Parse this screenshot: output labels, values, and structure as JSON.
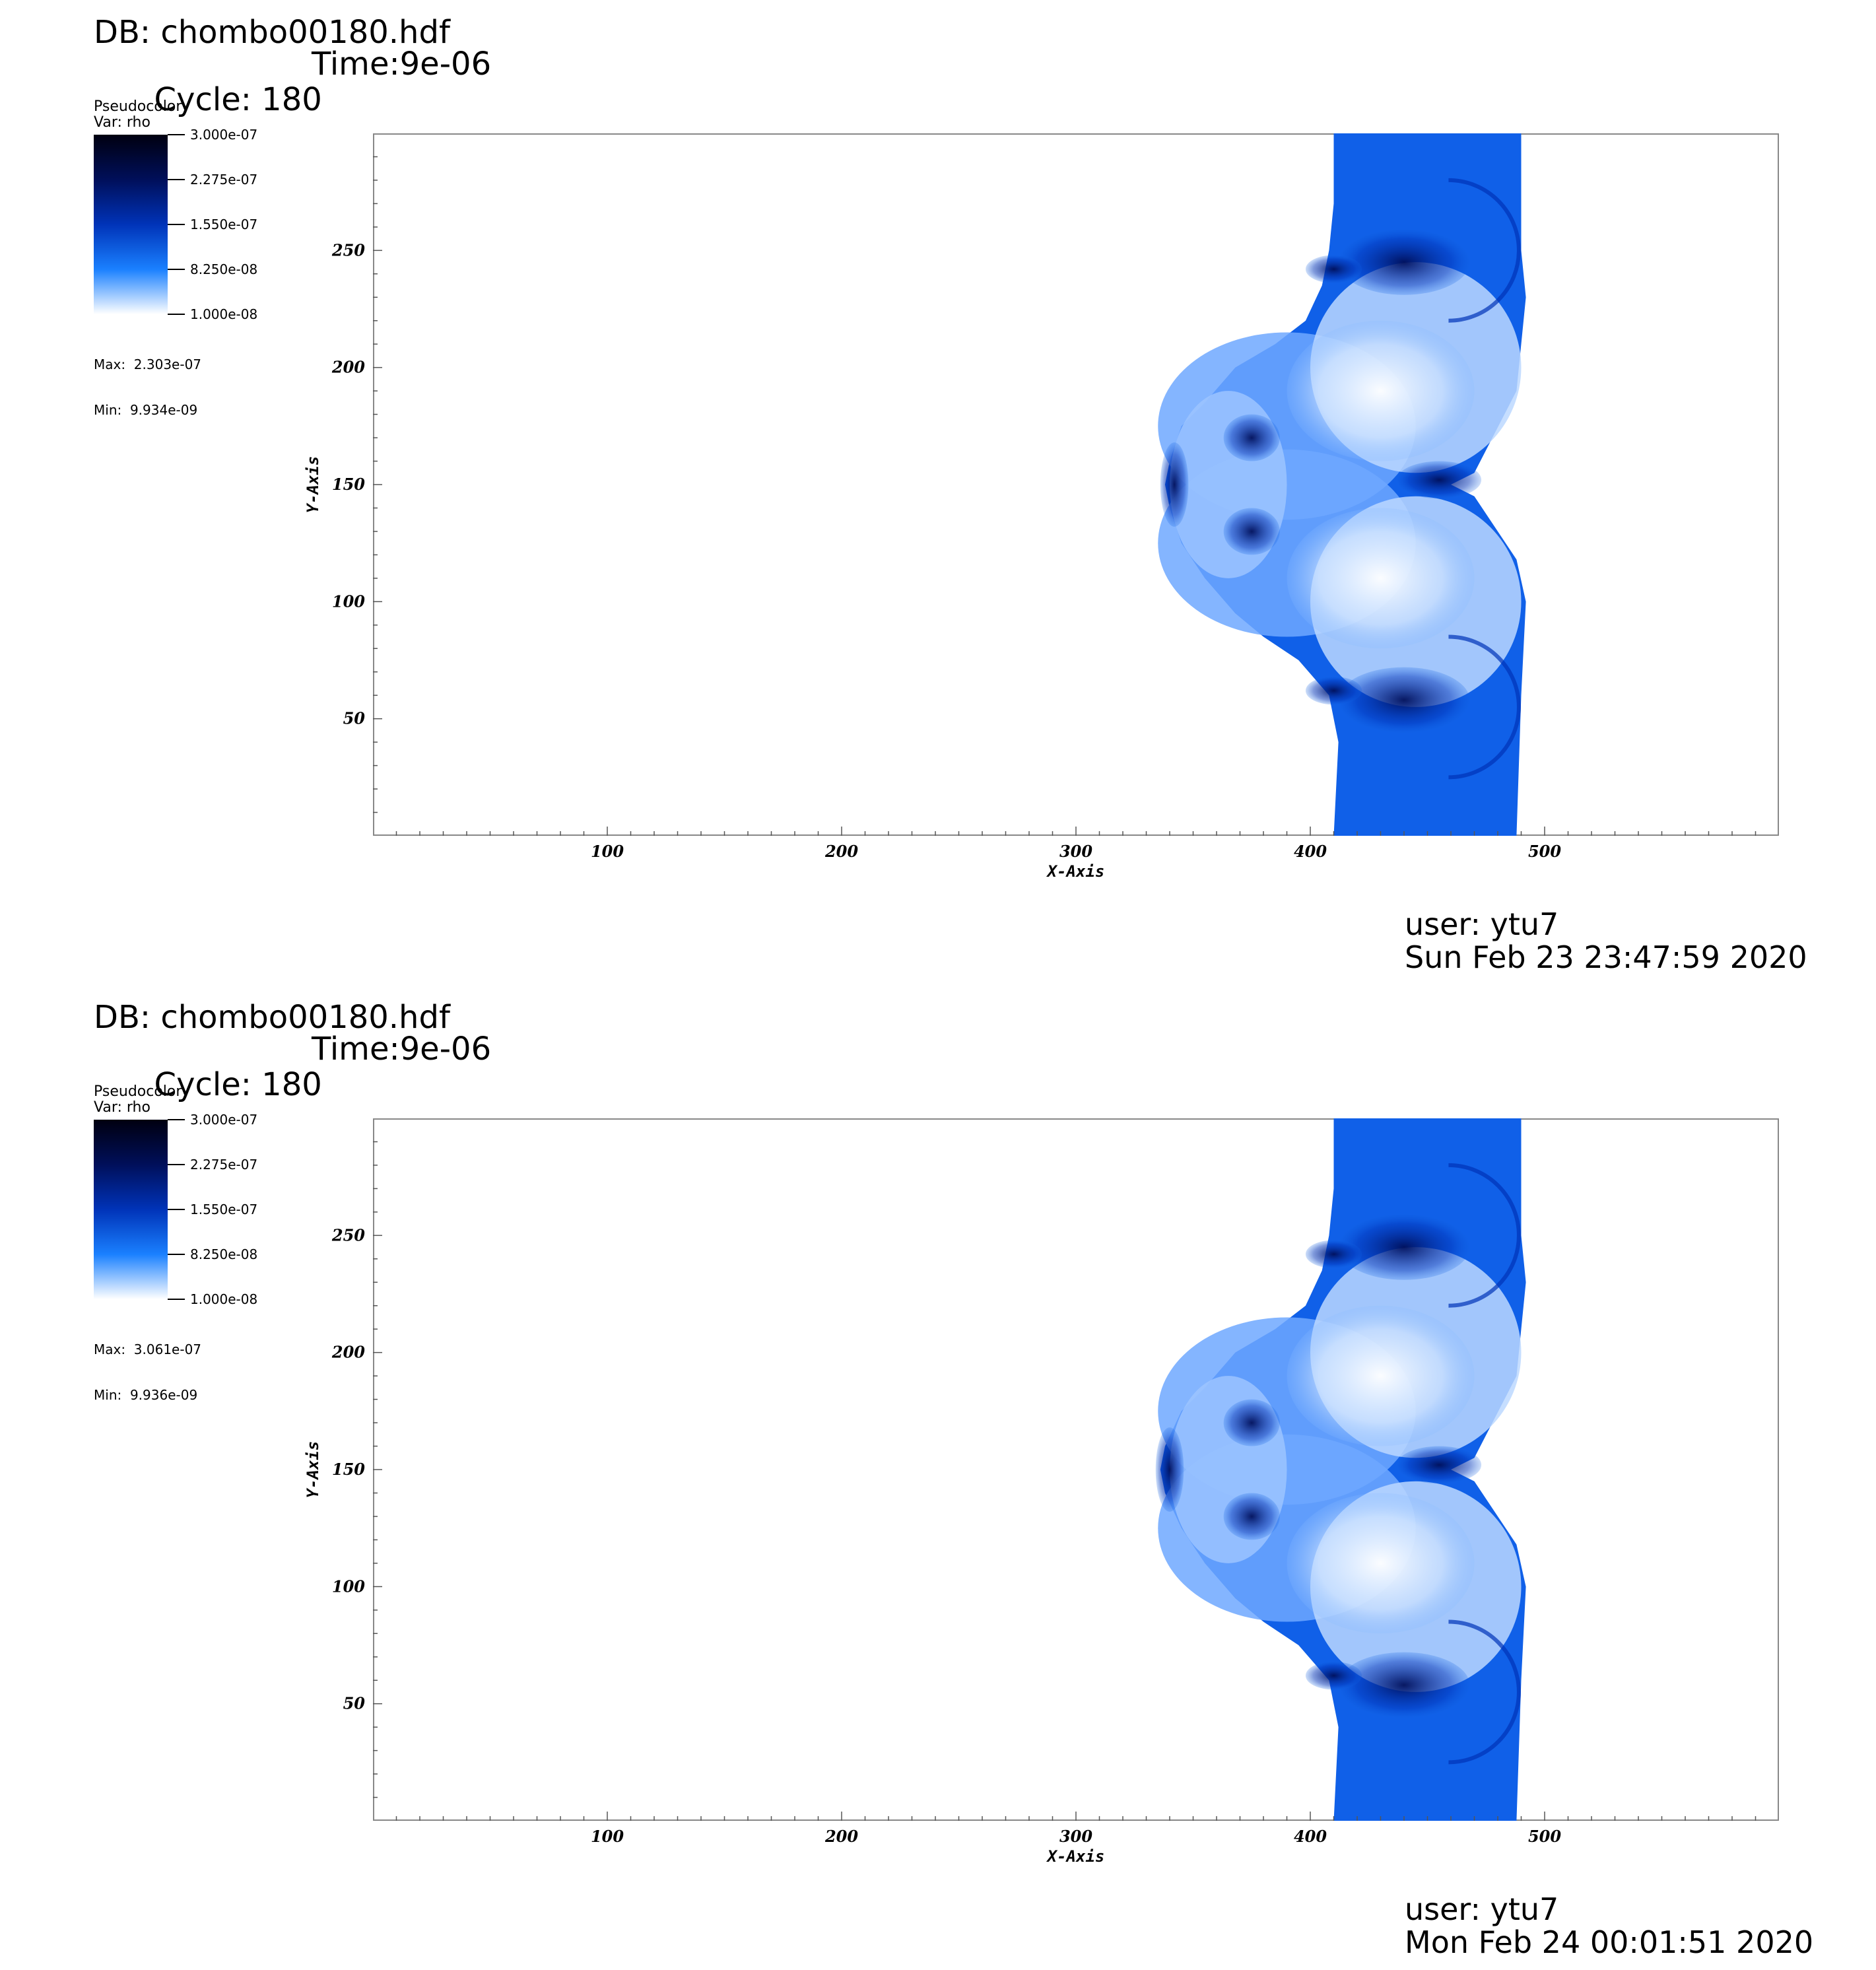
{
  "panels": [
    {
      "db": "DB: chombo00180.hdf",
      "cycle": "Cycle: 180",
      "time": "Time:9e-06",
      "legend_title": "Pseudocolor",
      "legend_var": "Var: rho",
      "legend_labels": [
        "3.000e-07",
        "2.275e-07",
        "1.550e-07",
        "8.250e-08",
        "1.000e-08"
      ],
      "max": "Max:  2.303e-07",
      "min": "Min:  9.934e-09",
      "user": "user: ytu7",
      "date": "Sun Feb 23 23:47:59 2020"
    },
    {
      "db": "DB: chombo00180.hdf",
      "cycle": "Cycle: 180",
      "time": "Time:9e-06",
      "legend_title": "Pseudocolor",
      "legend_var": "Var: rho",
      "legend_labels": [
        "3.000e-07",
        "2.275e-07",
        "1.550e-07",
        "8.250e-08",
        "1.000e-08"
      ],
      "max": "Max:  3.061e-07",
      "min": "Min:  9.936e-09",
      "user": "user: ytu7",
      "date": "Mon Feb 24 00:01:51 2020"
    }
  ],
  "chart_data": [
    {
      "type": "heatmap",
      "variable": "rho",
      "colormap": [
        "#000010",
        "#000f5a",
        "#0033b8",
        "#1a80ff",
        "#ffffff"
      ],
      "color_range": [
        1e-08,
        3e-07
      ],
      "xlabel": "X-Axis",
      "ylabel": "Y-Axis",
      "xticks": [
        100,
        200,
        300,
        400,
        500
      ],
      "yticks": [
        50,
        100,
        150,
        200,
        250
      ],
      "xlim": [
        0,
        600
      ],
      "ylim": [
        0,
        300
      ],
      "minor_tick_step": 10
    },
    {
      "type": "heatmap",
      "variable": "rho",
      "colormap": [
        "#000010",
        "#000f5a",
        "#0033b8",
        "#1a80ff",
        "#ffffff"
      ],
      "color_range": [
        1e-08,
        3e-07
      ],
      "xlabel": "X-Axis",
      "ylabel": "Y-Axis",
      "xticks": [
        100,
        200,
        300,
        400,
        500
      ],
      "yticks": [
        50,
        100,
        150,
        200,
        250
      ],
      "xlim": [
        0,
        600
      ],
      "ylim": [
        0,
        300
      ],
      "minor_tick_step": 10
    }
  ]
}
